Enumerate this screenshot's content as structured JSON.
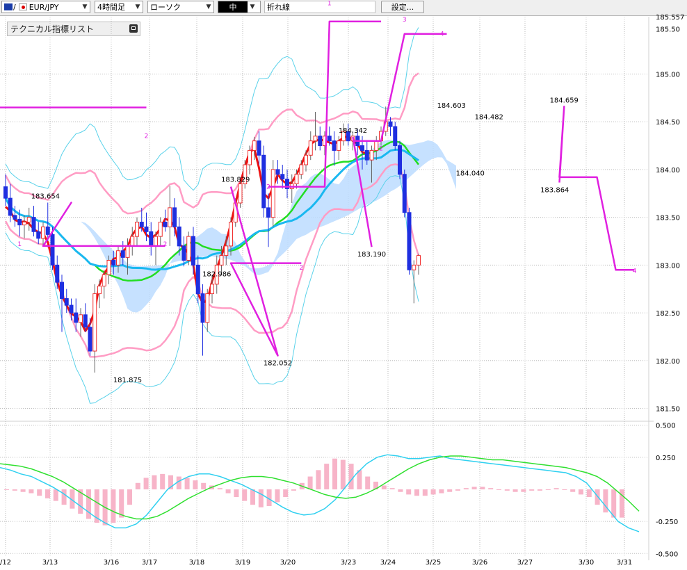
{
  "toolbar": {
    "symbol": "EUR/JPY",
    "timeframe": "4時間足",
    "chart_style": "ローソク",
    "line_width": "中",
    "indicator": "折れ線",
    "settings_label": "設定..."
  },
  "panel": {
    "label": "テクニカル指標リスト"
  },
  "colors": {
    "bull_candle": "#f03030",
    "bear_candle": "#1f2fe0",
    "bollinger_outer": "#5ad2ea",
    "bollinger_inner": "#ff9cc4",
    "middle_band": "#22dd22",
    "cloud": "#bcdcff",
    "cloud_pink": "#ffc4dc",
    "kijun": "#1ab8f0",
    "red_line": "#ee1111",
    "zigzag": "#e020e0",
    "macd": "#30d0f0",
    "signal": "#30e030",
    "histogram": "#f7b4c8"
  },
  "chart_data": [
    {
      "type": "candlestick",
      "y_ticks": [
        "185.557",
        "185.50",
        "185.00",
        "184.50",
        "184.00",
        "183.50",
        "183.00",
        "182.50",
        "182.00",
        "181.50"
      ],
      "x_ticks": [
        "/12",
        "3/13",
        "3/16",
        "3/17",
        "3/18",
        "3/19",
        "3/20",
        "3/23",
        "3/24",
        "3/25",
        "3/26",
        "3/27",
        "3/30",
        "3/31"
      ],
      "ylim": [
        181.38,
        185.6
      ],
      "annotations": [
        {
          "label": "183.654",
          "x": 8.5,
          "y": 183.654
        },
        {
          "label": "181.875",
          "x": 26,
          "y": 181.875
        },
        {
          "label": "182.986",
          "x": 45,
          "y": 182.986
        },
        {
          "label": "183.829",
          "x": 49,
          "y": 183.829
        },
        {
          "label": "182.052",
          "x": 58,
          "y": 182.052
        },
        {
          "label": "184.342",
          "x": 74,
          "y": 184.342
        },
        {
          "label": "183.190",
          "x": 78,
          "y": 183.19
        },
        {
          "label": "184.603",
          "x": 95,
          "y": 184.603
        },
        {
          "label": "184.040",
          "x": 99,
          "y": 184.04
        },
        {
          "label": "184.482",
          "x": 103,
          "y": 184.482
        },
        {
          "label": "184.659",
          "x": 119,
          "y": 184.659
        },
        {
          "label": "183.864",
          "x": 117,
          "y": 183.864
        }
      ],
      "zigzag_labels": [
        {
          "label": "1",
          "x": 3,
          "y": 183.2
        },
        {
          "label": "2",
          "x": 30,
          "y": 184.33
        },
        {
          "label": "1",
          "x": 69,
          "y": 185.72
        },
        {
          "label": "2",
          "x": 56,
          "y": 183.8
        },
        {
          "label": "3",
          "x": 85,
          "y": 185.55
        },
        {
          "label": "4",
          "x": 93,
          "y": 185.4
        },
        {
          "label": "2",
          "x": 80,
          "y": 184.2
        },
        {
          "label": "2",
          "x": 34,
          "y": 183.2
        },
        {
          "label": "2",
          "x": 63,
          "y": 182.95
        },
        {
          "label": "4",
          "x": 134,
          "y": 182.92
        }
      ],
      "candles": [
        [
          183.82,
          183.95,
          183.62,
          183.7
        ],
        [
          183.7,
          183.85,
          183.45,
          183.52
        ],
        [
          183.52,
          183.62,
          183.4,
          183.48
        ],
        [
          183.48,
          183.58,
          183.3,
          183.42
        ],
        [
          183.42,
          183.52,
          183.28,
          183.45
        ],
        [
          183.45,
          183.6,
          183.36,
          183.5
        ],
        [
          183.5,
          183.62,
          183.3,
          183.35
        ],
        [
          183.35,
          183.45,
          183.22,
          183.28
        ],
        [
          183.28,
          183.45,
          183.2,
          183.4
        ],
        [
          183.4,
          183.654,
          183.25,
          183.32
        ],
        [
          183.32,
          183.4,
          182.95,
          183.0
        ],
        [
          183.0,
          183.1,
          182.75,
          182.82
        ],
        [
          182.82,
          182.9,
          182.3,
          182.65
        ],
        [
          182.65,
          182.75,
          182.5,
          182.58
        ],
        [
          182.58,
          182.65,
          182.42,
          182.5
        ],
        [
          182.5,
          182.65,
          182.3,
          182.4
        ],
        [
          182.4,
          182.55,
          182.25,
          182.48
        ],
        [
          182.48,
          182.6,
          182.3,
          182.35
        ],
        [
          182.35,
          182.45,
          182.05,
          182.1
        ],
        [
          182.1,
          182.8,
          181.875,
          182.7
        ],
        [
          182.7,
          182.85,
          182.55,
          182.78
        ],
        [
          182.78,
          182.95,
          182.65,
          182.9
        ],
        [
          182.9,
          183.1,
          182.8,
          183.05
        ],
        [
          183.05,
          183.15,
          182.9,
          183.0
        ],
        [
          183.0,
          183.2,
          182.92,
          183.15
        ],
        [
          183.15,
          183.25,
          183.0,
          183.08
        ],
        [
          183.08,
          183.28,
          182.9,
          183.2
        ],
        [
          183.2,
          183.4,
          183.1,
          183.3
        ],
        [
          183.3,
          183.5,
          183.2,
          183.45
        ],
        [
          183.45,
          183.6,
          183.35,
          183.4
        ],
        [
          183.4,
          183.55,
          183.25,
          183.35
        ],
        [
          183.35,
          183.45,
          183.1,
          183.2
        ],
        [
          183.2,
          183.35,
          183.0,
          183.3
        ],
        [
          183.3,
          183.5,
          183.2,
          183.45
        ],
        [
          183.45,
          183.58,
          183.35,
          183.4
        ],
        [
          183.4,
          183.829,
          183.2,
          183.6
        ],
        [
          183.6,
          183.7,
          183.3,
          183.4
        ],
        [
          183.4,
          183.5,
          183.1,
          183.2
        ],
        [
          183.2,
          183.3,
          182.986,
          183.05
        ],
        [
          183.05,
          183.35,
          183.0,
          183.3
        ],
        [
          183.3,
          183.4,
          182.9,
          183.0
        ],
        [
          183.0,
          183.1,
          182.6,
          182.7
        ],
        [
          182.7,
          182.8,
          182.052,
          182.4
        ],
        [
          182.4,
          182.75,
          182.3,
          182.7
        ],
        [
          182.7,
          182.9,
          182.6,
          182.8
        ],
        [
          182.8,
          183.1,
          182.7,
          183.0
        ],
        [
          183.0,
          183.2,
          182.9,
          183.1
        ],
        [
          183.1,
          183.3,
          183.0,
          183.2
        ],
        [
          183.2,
          183.5,
          183.1,
          183.45
        ],
        [
          183.45,
          183.7,
          183.4,
          183.65
        ],
        [
          183.65,
          183.9,
          183.6,
          183.85
        ],
        [
          183.85,
          184.1,
          183.8,
          184.05
        ],
        [
          184.05,
          184.25,
          183.95,
          184.2
        ],
        [
          184.2,
          184.342,
          184.1,
          184.3
        ],
        [
          184.3,
          184.4,
          184.05,
          184.15
        ],
        [
          184.15,
          184.25,
          183.5,
          183.6
        ],
        [
          183.6,
          183.75,
          183.19,
          183.5
        ],
        [
          183.5,
          184.1,
          183.4,
          184.0
        ],
        [
          184.0,
          184.1,
          183.85,
          183.95
        ],
        [
          183.95,
          184.05,
          183.8,
          183.9
        ],
        [
          183.9,
          184.0,
          183.7,
          183.8
        ],
        [
          183.8,
          183.95,
          183.65,
          183.85
        ],
        [
          183.85,
          184.0,
          183.8,
          183.95
        ],
        [
          183.95,
          184.1,
          183.9,
          184.05
        ],
        [
          184.05,
          184.2,
          183.98,
          184.15
        ],
        [
          184.15,
          184.4,
          184.1,
          184.3
        ],
        [
          184.3,
          184.603,
          184.2,
          184.35
        ],
        [
          184.35,
          184.45,
          184.2,
          184.25
        ],
        [
          184.25,
          184.4,
          184.15,
          184.35
        ],
        [
          184.35,
          184.45,
          184.25,
          184.3
        ],
        [
          184.3,
          184.4,
          184.04,
          184.2
        ],
        [
          184.2,
          184.35,
          184.1,
          184.3
        ],
        [
          184.3,
          184.482,
          184.25,
          184.4
        ],
        [
          184.4,
          184.48,
          184.25,
          184.3
        ],
        [
          184.3,
          184.4,
          184.2,
          184.35
        ],
        [
          184.35,
          184.42,
          184.15,
          184.25
        ],
        [
          184.25,
          184.35,
          184.0,
          184.2
        ],
        [
          184.2,
          184.3,
          184.05,
          184.1
        ],
        [
          184.1,
          184.25,
          183.864,
          184.2
        ],
        [
          184.2,
          184.35,
          184.1,
          184.3
        ],
        [
          184.3,
          184.45,
          184.25,
          184.4
        ],
        [
          184.4,
          184.659,
          184.35,
          184.5
        ],
        [
          184.5,
          184.55,
          184.35,
          184.45
        ],
        [
          184.45,
          184.5,
          184.2,
          184.25
        ],
        [
          184.25,
          184.3,
          183.9,
          183.95
        ],
        [
          183.95,
          184.0,
          183.5,
          183.55
        ],
        [
          183.55,
          183.6,
          182.9,
          182.95
        ],
        [
          182.95,
          183.05,
          182.6,
          183.0
        ],
        [
          183.0,
          183.12,
          182.9,
          183.1
        ]
      ]
    },
    {
      "type": "macd",
      "y_ticks": [
        "0.500",
        "0.250",
        "-0.250",
        "-0.500"
      ],
      "ylim": [
        -0.52,
        0.52
      ],
      "histogram": [
        0.0,
        -0.01,
        -0.02,
        -0.03,
        -0.05,
        -0.07,
        -0.09,
        -0.12,
        -0.15,
        -0.19,
        -0.23,
        -0.26,
        -0.28,
        -0.26,
        -0.22,
        -0.12,
        0.05,
        0.09,
        0.11,
        0.12,
        0.11,
        0.1,
        0.09,
        0.07,
        0.05,
        0.03,
        0.01,
        -0.03,
        -0.06,
        -0.09,
        -0.12,
        -0.14,
        -0.13,
        -0.1,
        -0.06,
        -0.01,
        0.05,
        0.1,
        0.15,
        0.2,
        0.24,
        0.23,
        0.2,
        0.15,
        0.1,
        0.06,
        0.03,
        0.01,
        -0.02,
        -0.04,
        -0.05,
        -0.05,
        -0.04,
        -0.03,
        -0.02,
        -0.01,
        0.01,
        0.02,
        0.02,
        0.01,
        0.0,
        -0.01,
        -0.02,
        -0.02,
        -0.01,
        -0.01,
        0.0,
        0.01,
        0.0,
        -0.02,
        -0.04,
        -0.06,
        -0.12,
        -0.18,
        -0.22,
        -0.22
      ],
      "macd": [
        0.17,
        0.15,
        0.12,
        0.1,
        0.06,
        0.02,
        -0.03,
        -0.09,
        -0.15,
        -0.21,
        -0.26,
        -0.3,
        -0.3,
        -0.27,
        -0.2,
        -0.1,
        0.0,
        0.06,
        0.1,
        0.12,
        0.12,
        0.1,
        0.07,
        0.04,
        0.0,
        -0.04,
        -0.09,
        -0.14,
        -0.18,
        -0.2,
        -0.19,
        -0.15,
        -0.08,
        0.02,
        0.12,
        0.2,
        0.25,
        0.27,
        0.26,
        0.24,
        0.24,
        0.25,
        0.26,
        0.24,
        0.23,
        0.22,
        0.21,
        0.2,
        0.19,
        0.18,
        0.17,
        0.16,
        0.15,
        0.14,
        0.13,
        0.1,
        0.05,
        -0.05,
        -0.15,
        -0.25,
        -0.3,
        -0.33
      ],
      "signal": [
        0.2,
        0.19,
        0.18,
        0.16,
        0.13,
        0.1,
        0.06,
        0.01,
        -0.04,
        -0.09,
        -0.14,
        -0.18,
        -0.21,
        -0.23,
        -0.23,
        -0.21,
        -0.17,
        -0.12,
        -0.07,
        -0.03,
        0.01,
        0.04,
        0.07,
        0.09,
        0.1,
        0.1,
        0.09,
        0.07,
        0.05,
        0.02,
        -0.01,
        -0.04,
        -0.06,
        -0.07,
        -0.06,
        -0.03,
        0.01,
        0.06,
        0.11,
        0.16,
        0.2,
        0.23,
        0.25,
        0.26,
        0.26,
        0.25,
        0.24,
        0.23,
        0.23,
        0.22,
        0.21,
        0.2,
        0.19,
        0.18,
        0.17,
        0.15,
        0.13,
        0.1,
        0.05,
        -0.02,
        -0.09,
        -0.17
      ]
    }
  ]
}
